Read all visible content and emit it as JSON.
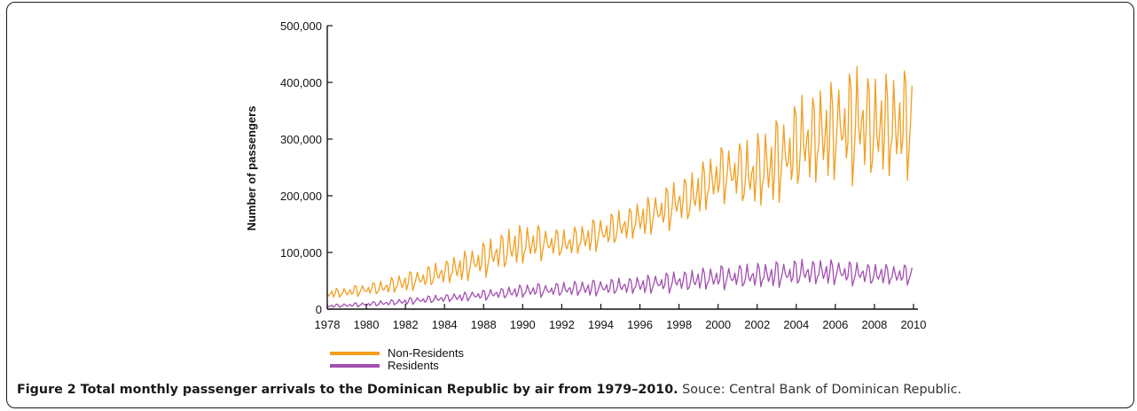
{
  "figure": {
    "caption_title": "Figure 2 Total monthly passenger arrivals to the Dominican Republic by air from 1979–2010.",
    "caption_source": "Souce: Central Bank of Dominican Republic."
  },
  "chart_data": {
    "type": "line",
    "title": "",
    "xlabel": "",
    "ylabel": "Number of passengers",
    "ylim": [
      0,
      500000
    ],
    "yticks": [
      0,
      100000,
      200000,
      300000,
      400000,
      500000
    ],
    "ytick_labels": [
      "0",
      "100,000",
      "200,000",
      "300,000",
      "400,000",
      "500,000"
    ],
    "xtick_labels": [
      "1978",
      "1980",
      "1982",
      "1984",
      "1988",
      "1990",
      "1992",
      "1994",
      "1996",
      "1998",
      "2000",
      "2002",
      "2004",
      "2006",
      "2008",
      "2010"
    ],
    "grid": false,
    "legend_position": "bottom-left",
    "colors": {
      "Non-Residents": "#F29E1F",
      "Residents": "#A24FB0"
    },
    "x": [
      "1979",
      "1980",
      "1981",
      "1982",
      "1983",
      "1984",
      "1985",
      "1986",
      "1987",
      "1988",
      "1989",
      "1990",
      "1991",
      "1992",
      "1993",
      "1994",
      "1995",
      "1996",
      "1997",
      "1998",
      "1999",
      "2000",
      "2001",
      "2002",
      "2003",
      "2004",
      "2005",
      "2006",
      "2007",
      "2008",
      "2009",
      "2010"
    ],
    "series": [
      {
        "name": "Non-Residents",
        "values_low": [
          18000,
          20000,
          22000,
          24000,
          28000,
          32000,
          38000,
          42000,
          48000,
          58000,
          68000,
          78000,
          85000,
          88000,
          95000,
          100000,
          110000,
          120000,
          130000,
          140000,
          150000,
          175000,
          185000,
          165000,
          170000,
          185000,
          195000,
          205000,
          220000,
          210000,
          215000,
          220000
        ],
        "values_high": [
          35000,
          38000,
          45000,
          50000,
          62000,
          70000,
          82000,
          95000,
          110000,
          125000,
          145000,
          150000,
          145000,
          140000,
          150000,
          165000,
          175000,
          190000,
          205000,
          225000,
          245000,
          275000,
          295000,
          300000,
          320000,
          345000,
          380000,
          395000,
          405000,
          430000,
          410000,
          420000
        ]
      },
      {
        "name": "Residents",
        "values_low": [
          2000,
          3000,
          4000,
          5000,
          7000,
          8000,
          10000,
          12000,
          14000,
          16000,
          18000,
          19000,
          20000,
          21000,
          21000,
          22000,
          23000,
          24000,
          26000,
          28000,
          30000,
          32000,
          33000,
          34000,
          35000,
          36000,
          38000,
          39000,
          40000,
          40000,
          40000,
          41000
        ],
        "values_high": [
          8000,
          10000,
          12000,
          15000,
          18000,
          22000,
          25000,
          28000,
          32000,
          35000,
          40000,
          45000,
          45000,
          48000,
          50000,
          52000,
          55000,
          58000,
          62000,
          66000,
          70000,
          75000,
          78000,
          80000,
          82000,
          85000,
          88000,
          88000,
          86000,
          82000,
          80000,
          78000
        ]
      }
    ]
  }
}
